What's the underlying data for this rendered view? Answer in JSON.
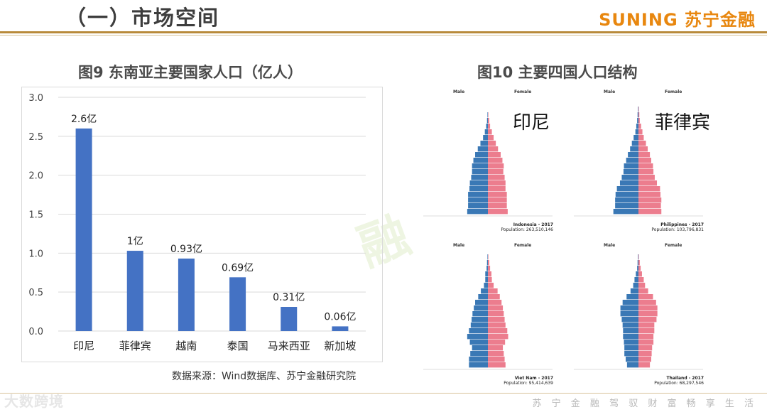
{
  "header": {
    "title": "（一）市场空间",
    "brand": "SUNING 苏宁金融"
  },
  "left": {
    "title": "图9 东南亚主要国家人口（亿人）",
    "source": "数据来源：Wind数据库、苏宁金融研究院"
  },
  "right": {
    "title": "图10 主要四国人口结构",
    "panels": [
      {
        "label": "印尼",
        "caption": "Indonesia - 2017",
        "population": "Population: 263,510,146",
        "male": [
          4.7,
          4.5,
          4.5,
          4.5,
          4.2,
          4.1,
          3.8,
          3.6,
          3.6,
          3.3,
          2.9,
          2.3,
          1.7,
          1.1,
          0.7,
          0.4,
          0.2,
          0.1,
          0.0,
          0.0,
          0.0
        ],
        "female": [
          4.5,
          4.3,
          4.3,
          4.3,
          4.0,
          4.0,
          3.8,
          3.5,
          3.6,
          3.3,
          2.9,
          2.3,
          1.8,
          1.3,
          0.9,
          0.5,
          0.3,
          0.1,
          0.0,
          0.0,
          0.0
        ]
      },
      {
        "label": "菲律宾",
        "caption": "Philippines - 2017",
        "population": "Population: 103,796,831",
        "male": [
          5.7,
          5.3,
          5.3,
          5.2,
          4.9,
          4.2,
          3.8,
          3.4,
          3.3,
          2.8,
          2.4,
          1.9,
          1.5,
          1.1,
          0.7,
          0.5,
          0.3,
          0.2,
          0.1,
          0.0,
          0.0
        ],
        "female": [
          5.2,
          5.1,
          5.2,
          5.0,
          4.9,
          4.2,
          3.7,
          3.4,
          3.3,
          2.9,
          2.6,
          2.1,
          1.7,
          1.2,
          0.9,
          0.6,
          0.3,
          0.2,
          0.1,
          0.0,
          0.0
        ]
      },
      {
        "label": "",
        "caption": "Viet Nam - 2017",
        "population": "Population: 95,414,639",
        "male": [
          4.3,
          4.3,
          4.0,
          3.6,
          4.1,
          4.7,
          4.3,
          3.9,
          3.7,
          3.5,
          3.2,
          2.9,
          2.2,
          1.6,
          0.9,
          0.6,
          0.6,
          0.3,
          0.2,
          0.1,
          0.0
        ],
        "female": [
          4.0,
          3.8,
          3.6,
          3.4,
          3.9,
          4.6,
          4.4,
          4.0,
          3.8,
          3.6,
          3.4,
          3.1,
          2.7,
          2.2,
          1.3,
          0.9,
          0.8,
          0.5,
          0.3,
          0.1,
          0.0
        ]
      },
      {
        "label": "",
        "caption": "Thailand - 2017",
        "population": "Population: 68,297,546",
        "male": [
          2.6,
          2.9,
          3.2,
          3.2,
          3.3,
          3.5,
          3.5,
          3.6,
          3.8,
          4.1,
          4.1,
          3.6,
          2.7,
          1.8,
          1.2,
          0.9,
          0.6,
          0.3,
          0.2,
          0.1,
          0.0
        ],
        "female": [
          2.6,
          2.9,
          3.0,
          3.1,
          3.4,
          3.4,
          3.6,
          3.6,
          4.1,
          4.3,
          4.3,
          4.0,
          3.3,
          2.2,
          1.5,
          1.2,
          0.8,
          0.5,
          0.3,
          0.1,
          0.0
        ]
      }
    ]
  },
  "chart_data": {
    "type": "bar",
    "title": "图9 东南亚主要国家人口（亿人）",
    "categories": [
      "印尼",
      "菲律宾",
      "越南",
      "泰国",
      "马来西亚",
      "新加坡"
    ],
    "values": [
      2.6,
      1.03,
      0.93,
      0.69,
      0.31,
      0.06
    ],
    "data_labels": [
      "2.6亿",
      "1亿",
      "0.93亿",
      "0.69亿",
      "0.31亿",
      "0.06亿"
    ],
    "yticks": [
      "0.0",
      "0.5",
      "1.0",
      "1.5",
      "2.0",
      "2.5",
      "3.0"
    ],
    "ylim": [
      0,
      3
    ],
    "color": "#4472c4",
    "grid": true
  },
  "footer": {
    "watermark": "大数跨境",
    "slogan": "苏 宁 金 融   驾 驭 财 富   畅 享 生 活"
  }
}
